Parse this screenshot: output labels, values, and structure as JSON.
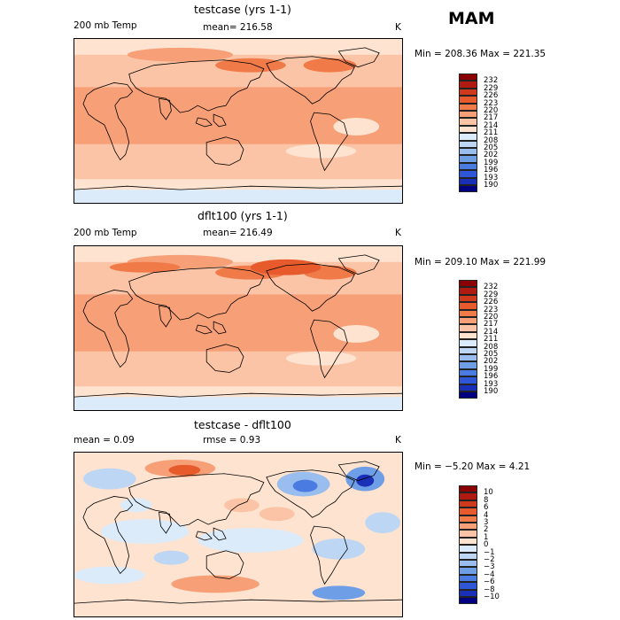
{
  "season": "MAM",
  "panels": [
    {
      "title": "testcase (yrs 1-1)",
      "left_label": "200 mb Temp",
      "center_label": "mean= 216.58",
      "units": "K",
      "stats": "Min = 208.36 Max = 221.35",
      "colorbar": {
        "labels": [
          "232",
          "229",
          "226",
          "223",
          "220",
          "217",
          "214",
          "211",
          "208",
          "205",
          "202",
          "199",
          "196",
          "193",
          "190"
        ],
        "colors": [
          "#8b0000",
          "#b01a10",
          "#d03a1c",
          "#e65a2c",
          "#f07a48",
          "#f7a078",
          "#fbc4a6",
          "#fde3d0",
          "#dcebfa",
          "#bcd6f4",
          "#98bdee",
          "#6e9ee6",
          "#4a7be0",
          "#2f56d6",
          "#1a2fb8",
          "#000080"
        ]
      },
      "map_variant": "a"
    },
    {
      "title": "dflt100 (yrs 1-1)",
      "left_label": "200 mb Temp",
      "center_label": "mean= 216.49",
      "units": "K",
      "stats": "Min = 209.10 Max = 221.99",
      "colorbar": {
        "labels": [
          "232",
          "229",
          "226",
          "223",
          "220",
          "217",
          "214",
          "211",
          "208",
          "205",
          "202",
          "199",
          "196",
          "193",
          "190"
        ],
        "colors": [
          "#8b0000",
          "#b01a10",
          "#d03a1c",
          "#e65a2c",
          "#f07a48",
          "#f7a078",
          "#fbc4a6",
          "#fde3d0",
          "#dcebfa",
          "#bcd6f4",
          "#98bdee",
          "#6e9ee6",
          "#4a7be0",
          "#2f56d6",
          "#1a2fb8",
          "#000080"
        ]
      },
      "map_variant": "b"
    },
    {
      "title": "testcase - dflt100",
      "left_label": "mean =    0.09",
      "center_label": "rmse =    0.93",
      "units": "K",
      "stats": "Min =  −5.20 Max =    4.21",
      "colorbar": {
        "labels": [
          "10",
          "8",
          "6",
          "4",
          "3",
          "2",
          "1",
          "0",
          "−1",
          "−2",
          "−3",
          "−4",
          "−6",
          "−8",
          "−10"
        ],
        "colors": [
          "#8b0000",
          "#b01a10",
          "#d03a1c",
          "#e65a2c",
          "#f07a48",
          "#f7a078",
          "#fbc4a6",
          "#fde3d0",
          "#dcebfa",
          "#bcd6f4",
          "#98bdee",
          "#6e9ee6",
          "#4a7be0",
          "#2f56d6",
          "#1a2fb8",
          "#000080"
        ]
      },
      "map_variant": "diff"
    }
  ]
}
